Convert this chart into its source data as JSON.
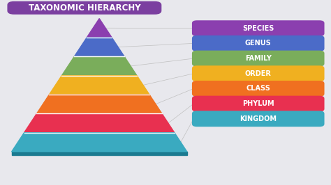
{
  "title": "TAXONOMIC HIERARCHY",
  "title_bg": "#7B3FA0",
  "title_text_color": "#ffffff",
  "background_color": "#e8e8ed",
  "levels": [
    {
      "label": "SPECIES",
      "color": "#8B3FAF",
      "dark": "#5a2070"
    },
    {
      "label": "GENUS",
      "color": "#4B6BC8",
      "dark": "#2a4598"
    },
    {
      "label": "FAMILY",
      "color": "#7AAD5B",
      "dark": "#4a7d3b"
    },
    {
      "label": "ORDER",
      "color": "#F0B020",
      "dark": "#b07800"
    },
    {
      "label": "CLASS",
      "color": "#F07020",
      "dark": "#b04000"
    },
    {
      "label": "PHYLUM",
      "color": "#E83050",
      "dark": "#a80830"
    },
    {
      "label": "KINGDOM",
      "color": "#3AAAC0",
      "dark": "#1a7a90"
    }
  ]
}
